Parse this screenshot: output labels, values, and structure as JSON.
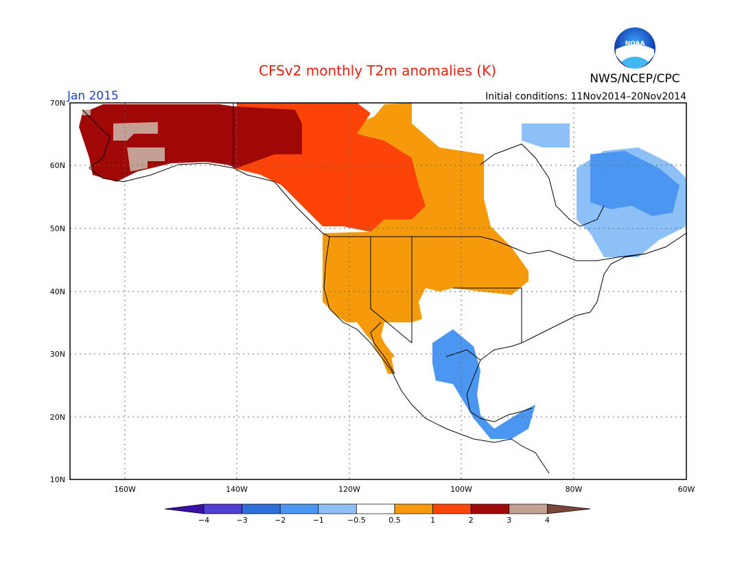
{
  "title": "CFSv2 monthly T2m anomalies (K)",
  "agency": "NWS/NCEP/CPC",
  "logo_text": "NOAA",
  "valid_month": "Jan 2015",
  "initial_conditions": "Initial conditions: 11Nov2014–20Nov2014",
  "colors": {
    "title": "#e8200c",
    "month": "#1a3fd0",
    "coast": "#000000",
    "grid": "#666666"
  },
  "map": {
    "lon_range": [
      -171,
      -60
    ],
    "lat_range": [
      10,
      70
    ],
    "lat_labels": [
      "70N",
      "60N",
      "50N",
      "40N",
      "30N",
      "20N",
      "10N"
    ],
    "lon_labels": [
      "160W",
      "140W",
      "120W",
      "100W",
      "80W",
      "60W"
    ]
  },
  "legend": {
    "labels": [
      "−4",
      "−3",
      "−2",
      "−1",
      "−0.5",
      "0.5",
      "1",
      "2",
      "3",
      "4"
    ],
    "colors": [
      "#3a0fa8",
      "#5040d0",
      "#2d6fd8",
      "#4a96f0",
      "#8cc0f7",
      "#ffffff",
      "#f59b0a",
      "#fc4408",
      "#a00808",
      "#c49f94",
      "#7a4637"
    ]
  },
  "anomaly_regions": [
    {
      "category": "3 to 4",
      "color": "#c49f94",
      "place": "Western Alaska"
    },
    {
      "category": "2 to 3",
      "color": "#a00808",
      "place": "Alaska and Yukon"
    },
    {
      "category": "1 to 2",
      "color": "#fc4408",
      "place": "Western Canada"
    },
    {
      "category": "0.5 to 1",
      "color": "#f59b0a",
      "place": "Western US and Canadian Prairies"
    },
    {
      "category": "-1 to -0.5",
      "color": "#8cc0f7",
      "place": "Eastern Canada"
    },
    {
      "category": "-2 to -1",
      "color": "#4a96f0",
      "place": "Texas and Mexico"
    }
  ]
}
